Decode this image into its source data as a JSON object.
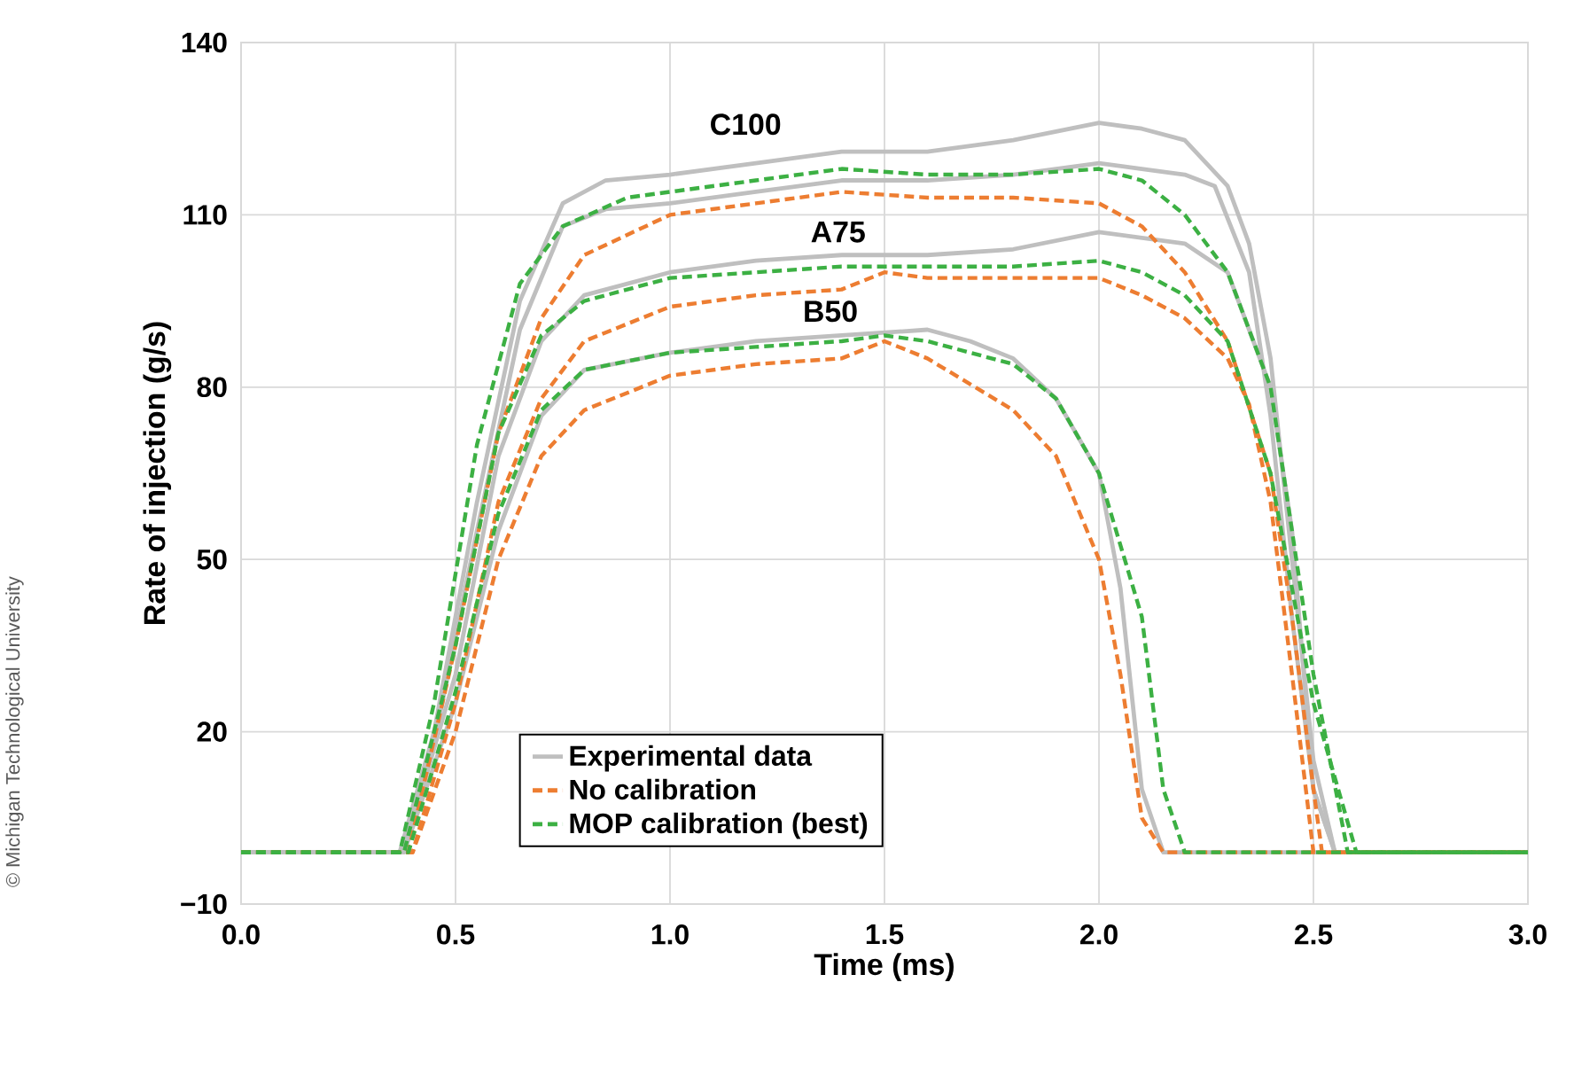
{
  "chart_data": {
    "type": "line",
    "xlabel": "Time (ms)",
    "ylabel": "Rate of injection (g/s)",
    "xlim": [
      0,
      3
    ],
    "ylim": [
      -10,
      140
    ],
    "xticks": [
      {
        "value": 0,
        "label": "0.0"
      },
      {
        "value": 0.5,
        "label": "0.5"
      },
      {
        "value": 1,
        "label": "1.0"
      },
      {
        "value": 1.5,
        "label": "1.5"
      },
      {
        "value": 2,
        "label": "2.0"
      },
      {
        "value": 2.5,
        "label": "2.5"
      },
      {
        "value": 3,
        "label": "3.0"
      }
    ],
    "yticks": [
      {
        "value": -10,
        "label": "−10"
      },
      20,
      50,
      80,
      110,
      140
    ],
    "grid": true,
    "legend": "bottom",
    "marker": "none",
    "annotations": [
      "C100",
      "A75",
      "B50",
      "© Michigan Technological University"
    ],
    "series": [
      {
        "name": "Experimental data",
        "color": "#bfbfbf",
        "line_style": "solid",
        "x": [
          0,
          0.37,
          0.45,
          0.55,
          0.65,
          0.75,
          0.85,
          1.0,
          1.2,
          1.4,
          1.6,
          1.8,
          2.0,
          2.1,
          2.2,
          2.3,
          2.35,
          2.4,
          2.45,
          2.5,
          2.55,
          3.0
        ],
        "values": [
          -1,
          -1,
          20,
          60,
          95,
          112,
          116,
          117,
          119,
          121,
          121,
          123,
          126,
          125,
          123,
          115,
          105,
          85,
          50,
          15,
          -1,
          -1
        ]
      },
      {
        "color": "#bfbfbf",
        "line_style": "solid",
        "x": [
          0,
          0.37,
          0.45,
          0.55,
          0.65,
          0.75,
          0.85,
          1.0,
          1.2,
          1.4,
          1.6,
          1.8,
          2.0,
          2.1,
          2.2,
          2.27,
          2.35,
          2.4,
          2.45,
          2.5,
          2.55,
          3.0
        ],
        "values": [
          -1,
          -1,
          18,
          55,
          90,
          108,
          111,
          112,
          114,
          116,
          116,
          117,
          119,
          118,
          117,
          115,
          100,
          75,
          40,
          10,
          -1,
          -1
        ]
      },
      {
        "color": "#bfbfbf",
        "line_style": "solid",
        "x": [
          0,
          0.38,
          0.5,
          0.6,
          0.7,
          0.8,
          1.0,
          1.2,
          1.4,
          1.6,
          1.8,
          2.0,
          2.2,
          2.3,
          2.4,
          2.45,
          2.5,
          2.55,
          3.0
        ],
        "values": [
          -1,
          -1,
          30,
          68,
          88,
          96,
          100,
          102,
          103,
          103,
          104,
          107,
          105,
          100,
          80,
          55,
          10,
          -1,
          -1
        ]
      },
      {
        "color": "#bfbfbf",
        "line_style": "solid",
        "x": [
          0,
          0.38,
          0.5,
          0.6,
          0.7,
          0.8,
          1.0,
          1.2,
          1.4,
          1.6,
          1.7,
          1.8,
          1.9,
          2.0,
          2.05,
          2.1,
          2.15,
          3.0
        ],
        "values": [
          -1,
          -1,
          25,
          55,
          75,
          83,
          86,
          88,
          89,
          90,
          88,
          85,
          78,
          65,
          45,
          10,
          -1,
          -1
        ]
      },
      {
        "name": "No calibration",
        "color": "#ed7d31",
        "line_style": "dashed",
        "x": [
          0,
          0.39,
          0.5,
          0.6,
          0.7,
          0.8,
          1.0,
          1.2,
          1.4,
          1.6,
          1.8,
          2.0,
          2.1,
          2.2,
          2.3,
          2.4,
          2.45,
          2.5,
          2.52,
          3.0
        ],
        "values": [
          -1,
          -1,
          35,
          72,
          92,
          103,
          110,
          112,
          114,
          113,
          113,
          112,
          108,
          100,
          88,
          65,
          40,
          10,
          -1,
          -1
        ]
      },
      {
        "color": "#ed7d31",
        "line_style": "dashed",
        "x": [
          0,
          0.4,
          0.5,
          0.6,
          0.7,
          0.8,
          1.0,
          1.2,
          1.4,
          1.5,
          1.6,
          1.8,
          2.0,
          2.1,
          2.2,
          2.3,
          2.35,
          2.4,
          2.45,
          2.5,
          3.0
        ],
        "values": [
          -1,
          -1,
          25,
          60,
          78,
          88,
          94,
          96,
          97,
          100,
          99,
          99,
          99,
          96,
          92,
          85,
          77,
          60,
          30,
          -1,
          -1
        ]
      },
      {
        "color": "#ed7d31",
        "line_style": "dashed",
        "x": [
          0,
          0.4,
          0.5,
          0.6,
          0.7,
          0.8,
          1.0,
          1.2,
          1.4,
          1.5,
          1.6,
          1.8,
          1.9,
          2.0,
          2.05,
          2.1,
          2.15,
          3.0
        ],
        "values": [
          -1,
          -1,
          20,
          50,
          68,
          76,
          82,
          84,
          85,
          88,
          85,
          76,
          68,
          50,
          30,
          5,
          -1,
          -1
        ]
      },
      {
        "name": "MOP calibration (best)",
        "color": "#3cb043",
        "line_style": "dashed",
        "x": [
          0,
          0.37,
          0.45,
          0.55,
          0.65,
          0.75,
          0.9,
          1.2,
          1.4,
          1.6,
          1.8,
          2.0,
          2.1,
          2.2,
          2.3,
          2.4,
          2.5,
          2.58,
          3.0
        ],
        "values": [
          -1,
          -1,
          25,
          70,
          98,
          108,
          113,
          116,
          118,
          117,
          117,
          118,
          116,
          110,
          100,
          80,
          30,
          -1,
          -1
        ]
      },
      {
        "color": "#3cb043",
        "line_style": "dashed",
        "x": [
          0,
          0.38,
          0.5,
          0.6,
          0.7,
          0.8,
          1.0,
          1.2,
          1.4,
          1.6,
          1.8,
          2.0,
          2.1,
          2.2,
          2.3,
          2.4,
          2.5,
          2.6,
          3.0
        ],
        "values": [
          -1,
          -1,
          35,
          72,
          89,
          95,
          99,
          100,
          101,
          101,
          101,
          102,
          100,
          96,
          88,
          65,
          25,
          -1,
          -1
        ]
      },
      {
        "color": "#3cb043",
        "line_style": "dashed",
        "x": [
          0,
          0.39,
          0.5,
          0.6,
          0.7,
          0.8,
          1.0,
          1.2,
          1.4,
          1.5,
          1.6,
          1.8,
          1.9,
          2.0,
          2.1,
          2.15,
          2.2,
          3.0
        ],
        "values": [
          -1,
          -1,
          27,
          58,
          76,
          83,
          86,
          87,
          88,
          89,
          88,
          84,
          78,
          65,
          40,
          10,
          -1,
          -1
        ]
      }
    ]
  }
}
